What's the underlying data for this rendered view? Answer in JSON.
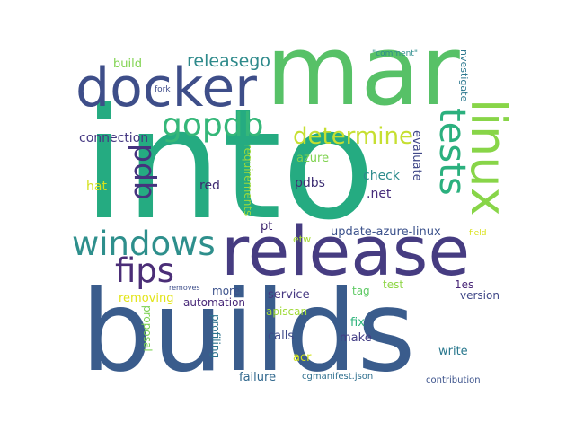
{
  "words": [
    {
      "text": "into",
      "color": "#25AB81"
    },
    {
      "text": "builds",
      "color": "#3A5C8C"
    },
    {
      "text": "mar",
      "color": "#57C167"
    },
    {
      "text": "release",
      "color": "#463C81"
    },
    {
      "text": "docker",
      "color": "#3E4E89"
    },
    {
      "text": "linux",
      "color": "#88D548"
    },
    {
      "text": "windows",
      "color": "#2E8F8C"
    },
    {
      "text": "tests",
      "color": "#2BB07E"
    },
    {
      "text": "fips",
      "color": "#4B2E77"
    },
    {
      "text": "gopdb",
      "color": "#35B779"
    },
    {
      "text": "determine",
      "color": "#C6DF31"
    },
    {
      "text": "pdb",
      "color": "#45347E"
    },
    {
      "text": "releasego",
      "color": "#2E8A8B"
    },
    {
      "text": "connection",
      "color": "#453882"
    },
    {
      "text": "update-azure-linux",
      "color": "#3B518B"
    },
    {
      "text": "investigate",
      "color": "#2B778E"
    },
    {
      "text": "evaluate",
      "color": "#3F4788"
    },
    {
      "text": "check",
      "color": "#2C8B8C"
    },
    {
      "text": "pdbs",
      "color": "#3E2F74"
    },
    {
      "text": ".net",
      "color": "#472D7B"
    },
    {
      "text": "red",
      "color": "#3F2A71"
    },
    {
      "text": "azure",
      "color": "#7FD24F"
    },
    {
      "text": "requirements",
      "color": "#9CD93B"
    },
    {
      "text": "hat",
      "color": "#D4E11A"
    },
    {
      "text": "build",
      "color": "#7FD34E"
    },
    {
      "text": "fork",
      "color": "#3D4A89"
    },
    {
      "text": "\"comment\"",
      "color": "#2D8C8C"
    },
    {
      "text": "pt",
      "color": "#3E2670"
    },
    {
      "text": "etw",
      "color": "#A5DB36"
    },
    {
      "text": "field",
      "color": "#D9E21A"
    },
    {
      "text": "removing",
      "color": "#E2E418"
    },
    {
      "text": "removes",
      "color": "#3D4E8A"
    },
    {
      "text": "more",
      "color": "#3B518B"
    },
    {
      "text": "automation",
      "color": "#482878"
    },
    {
      "text": "service",
      "color": "#453781"
    },
    {
      "text": "tag",
      "color": "#5DC963"
    },
    {
      "text": "test",
      "color": "#8ED645"
    },
    {
      "text": "1es",
      "color": "#482677"
    },
    {
      "text": "version",
      "color": "#3F4788"
    },
    {
      "text": "apiscan",
      "color": "#A0DA39"
    },
    {
      "text": "proposal",
      "color": "#7AD151"
    },
    {
      "text": "profiling",
      "color": "#2C738E"
    },
    {
      "text": "fix",
      "color": "#2FB47C"
    },
    {
      "text": "calls",
      "color": "#3E4989"
    },
    {
      "text": "make",
      "color": "#433E85"
    },
    {
      "text": "write",
      "color": "#2A788E"
    },
    {
      "text": "acr",
      "color": "#D2E21B"
    },
    {
      "text": "failure",
      "color": "#31688E"
    },
    {
      "text": "cgmanifest.json",
      "color": "#2E6F8E"
    },
    {
      "text": "contribution",
      "color": "#3B528B"
    }
  ]
}
